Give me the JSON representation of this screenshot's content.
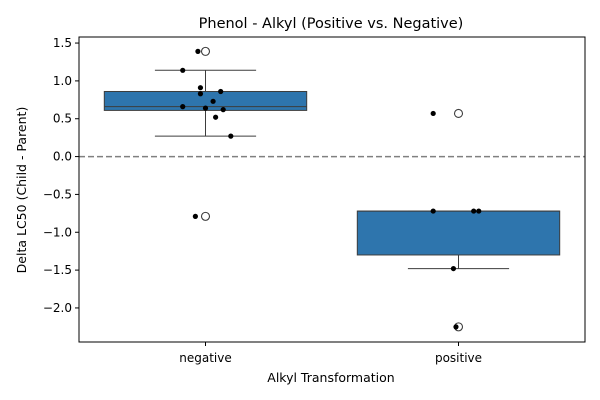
{
  "chart_data": {
    "type": "box",
    "title": "Phenol - Alkyl (Positive vs. Negative)",
    "xlabel": "Alkyl Transformation",
    "ylabel": "Delta LC50 (Child - Parent)",
    "categories": [
      "negative",
      "positive"
    ],
    "ylim": [
      -2.45,
      1.58
    ],
    "yticks": [
      1.5,
      1.0,
      0.5,
      0.0,
      -0.5,
      -1.0,
      -1.5,
      -2.0
    ],
    "ytick_labels": [
      "1.5",
      "1.0",
      "0.5",
      "0.0",
      "−0.5",
      "−1.0",
      "−1.5",
      "−2.0"
    ],
    "reference_line": {
      "y": 0.0,
      "style": "dashed"
    },
    "box_color": "#2e75ad",
    "boxes": [
      {
        "category": "negative",
        "whisker_low": 0.27,
        "q1": 0.61,
        "median": 0.66,
        "q3": 0.86,
        "whisker_high": 1.14,
        "outliers": [
          1.39,
          -0.79
        ]
      },
      {
        "category": "positive",
        "whisker_low": -1.48,
        "q1": -1.3,
        "median": -0.72,
        "q3": -0.72,
        "whisker_high": -0.72,
        "outliers": [
          0.57,
          -2.25
        ]
      }
    ],
    "points": [
      {
        "category": "negative",
        "jitter": -0.03,
        "y": 1.39
      },
      {
        "category": "negative",
        "jitter": -0.09,
        "y": 1.14
      },
      {
        "category": "negative",
        "jitter": -0.02,
        "y": 0.91
      },
      {
        "category": "negative",
        "jitter": 0.06,
        "y": 0.86
      },
      {
        "category": "negative",
        "jitter": -0.02,
        "y": 0.83
      },
      {
        "category": "negative",
        "jitter": 0.03,
        "y": 0.73
      },
      {
        "category": "negative",
        "jitter": -0.09,
        "y": 0.66
      },
      {
        "category": "negative",
        "jitter": 0.0,
        "y": 0.64
      },
      {
        "category": "negative",
        "jitter": 0.07,
        "y": 0.62
      },
      {
        "category": "negative",
        "jitter": 0.04,
        "y": 0.52
      },
      {
        "category": "negative",
        "jitter": 0.1,
        "y": 0.27
      },
      {
        "category": "negative",
        "jitter": -0.04,
        "y": -0.79
      },
      {
        "category": "positive",
        "jitter": -0.1,
        "y": 0.57
      },
      {
        "category": "positive",
        "jitter": -0.1,
        "y": -0.72
      },
      {
        "category": "positive",
        "jitter": 0.06,
        "y": -0.72
      },
      {
        "category": "positive",
        "jitter": 0.08,
        "y": -0.72
      },
      {
        "category": "positive",
        "jitter": -0.02,
        "y": -1.48
      },
      {
        "category": "positive",
        "jitter": -0.01,
        "y": -2.25
      }
    ]
  }
}
